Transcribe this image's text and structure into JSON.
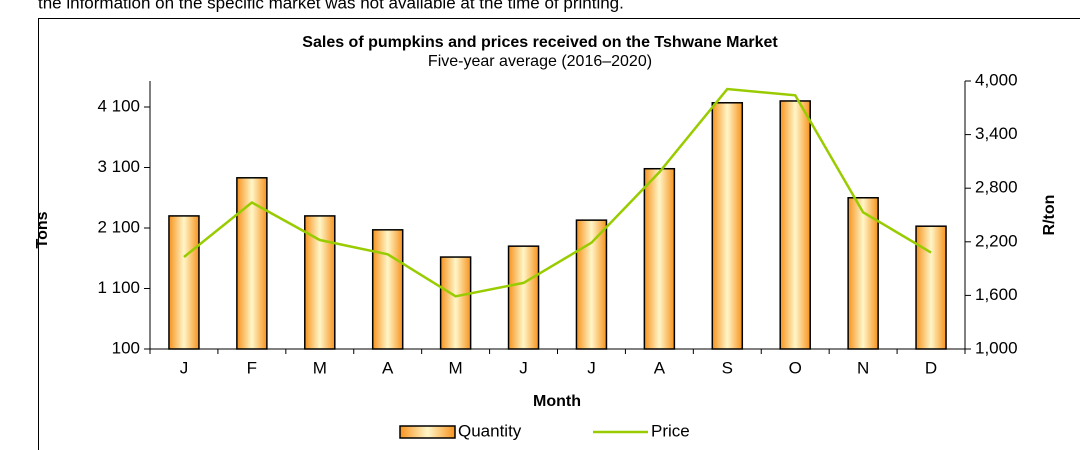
{
  "note_text": "the information on the specific market was not available at the time of printing.",
  "chart_data": {
    "type": "bar_line",
    "title": "Sales of pumpkins and prices received on the Tshwane Market",
    "subtitle": "Five-year average (2016–2020)",
    "x_label": "Month",
    "y_label": "Tons",
    "y2_label": "R/ton",
    "categories": [
      "J",
      "F",
      "M",
      "A",
      "M",
      "J",
      "J",
      "A",
      "S",
      "O",
      "N",
      "D"
    ],
    "series": [
      {
        "name": "Quantity",
        "type": "bar",
        "color": "#f7931e",
        "values": [
          2300,
          2930,
          2300,
          2070,
          1620,
          1800,
          2230,
          3080,
          4170,
          4200,
          2600,
          2130
        ]
      },
      {
        "name": "Price",
        "type": "line",
        "axis": "y2",
        "color": "#99cc00",
        "values": [
          2030,
          2640,
          2220,
          2060,
          1590,
          1740,
          2190,
          2980,
          3910,
          3840,
          2530,
          2080
        ]
      }
    ],
    "ylim": [
      100,
      4530
    ],
    "yticks": [
      100,
      {
        "value": 1100,
        "label": "1 100"
      },
      {
        "value": 2100,
        "label": "2 100"
      },
      {
        "value": 3100,
        "label": "3 100"
      },
      {
        "value": 4100,
        "label": "4 100"
      }
    ],
    "y2lim": [
      1000,
      4000
    ],
    "y2ticks": [
      {
        "value": 1000,
        "label": "1,000"
      },
      {
        "value": 1600,
        "label": "1,600"
      },
      {
        "value": 2200,
        "label": "2,200"
      },
      {
        "value": 2800,
        "label": "2,800"
      },
      {
        "value": 3400,
        "label": "3,400"
      },
      {
        "value": 4000,
        "label": "4,000"
      }
    ],
    "legend": "bottom"
  }
}
